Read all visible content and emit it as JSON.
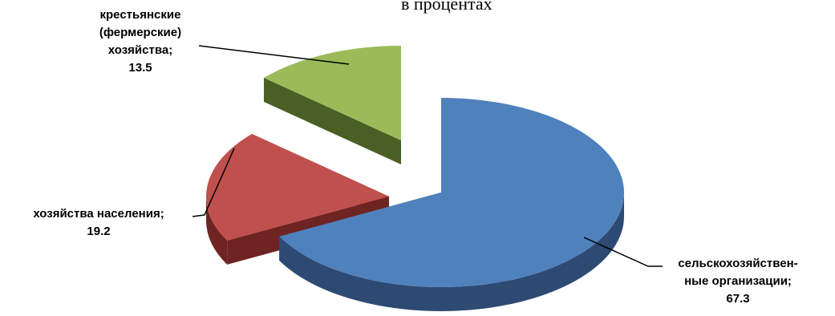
{
  "chart_data": {
    "type": "pie",
    "subtitle": "в процентах",
    "slices": [
      {
        "name": "сельскохозяйственные организации",
        "label_lines": [
          "сельскохозяйствен-",
          "ные организации;"
        ],
        "value": 67.3,
        "value_text": "67.3",
        "color": "#4f81bd",
        "side_color": "#2d4a73"
      },
      {
        "name": "хозяйства населения",
        "label_lines": [
          "хозяйства населения;"
        ],
        "value": 19.2,
        "value_text": "19.2",
        "color": "#c0504d",
        "side_color": "#6e2422"
      },
      {
        "name": "крестьянские (фермерские) хозяйства",
        "label_lines": [
          "крестьянские",
          "(фермерские)",
          "хозяйства;"
        ],
        "value": 13.5,
        "value_text": "13.5",
        "color": "#9bbb59",
        "side_color": "#4a5f24"
      }
    ],
    "style": "3d-exploded"
  }
}
